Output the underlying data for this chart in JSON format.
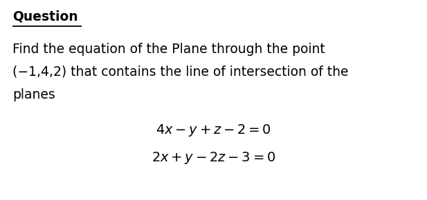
{
  "background_color": "#ffffff",
  "title_text": "Question",
  "title_fontsize": 13.5,
  "title_fontweight": "bold",
  "body_lines": [
    "Find the equation of the Plane through the point",
    "(−1,4,2) that contains the line of intersection of the",
    "planes"
  ],
  "body_fontsize": 13.5,
  "eq1": "$4x - y + z - 2 = 0$",
  "eq2": "$2x + y - 2z - 3 = 0$",
  "eq_fontsize": 14.0,
  "text_color": "#000000"
}
